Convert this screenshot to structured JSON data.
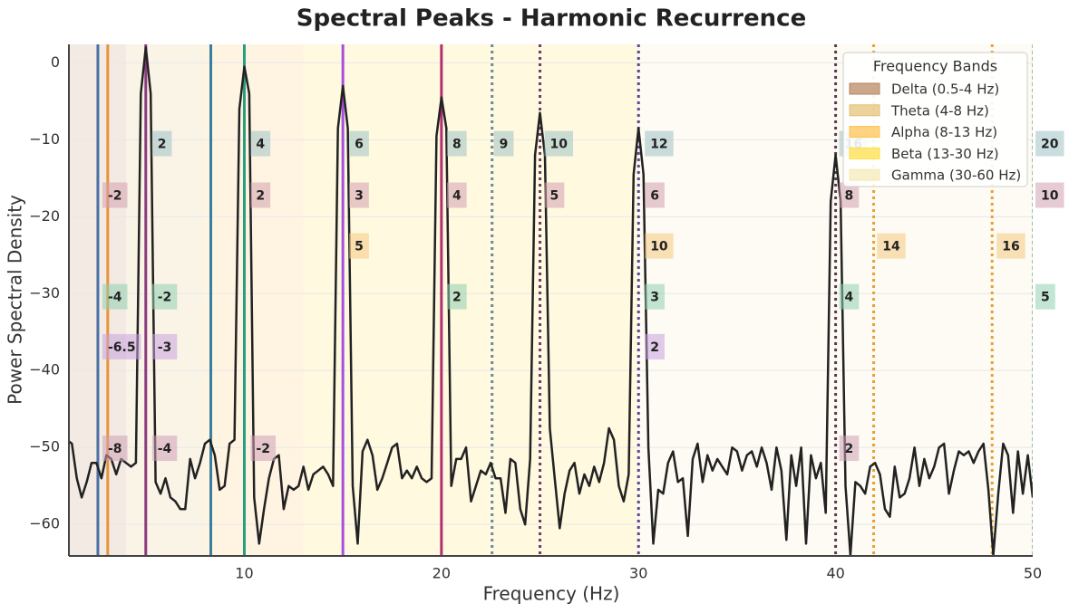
{
  "chart_data": {
    "type": "line",
    "title": "Spectral Peaks - Harmonic Recurrence",
    "xlabel": "Frequency (Hz)",
    "ylabel": "Power Spectral Density",
    "xlim": [
      1.1,
      50
    ],
    "ylim": [
      -64.1,
      2.4
    ],
    "xticks": [
      10,
      20,
      30,
      40,
      50
    ],
    "yticks": [
      0,
      {
        "value": -10,
        "label": "−10"
      },
      {
        "value": -20,
        "label": "−20"
      },
      {
        "value": -30,
        "label": "−30"
      },
      {
        "value": -40,
        "label": "−40"
      },
      {
        "value": -50,
        "label": "−50"
      },
      {
        "value": -60,
        "label": "−60"
      }
    ],
    "grid": true,
    "color": "#222222",
    "x": [
      1,
      1.25,
      1.5,
      1.75,
      2,
      2.25,
      2.5,
      2.75,
      3,
      3.25,
      3.5,
      3.75,
      4,
      4.25,
      4.5,
      4.75,
      5,
      5.25,
      5.5,
      5.75,
      6,
      6.25,
      6.5,
      6.75,
      7,
      7.25,
      7.5,
      7.75,
      8,
      8.25,
      8.5,
      8.75,
      9,
      9.25,
      9.5,
      9.75,
      10,
      10.25,
      10.5,
      10.75,
      11,
      11.25,
      11.5,
      11.75,
      12,
      12.25,
      12.5,
      12.75,
      13,
      13.25,
      13.5,
      13.75,
      14,
      14.25,
      14.5,
      14.75,
      15,
      15.25,
      15.5,
      15.75,
      16,
      16.25,
      16.5,
      16.75,
      17,
      17.25,
      17.5,
      17.75,
      18,
      18.25,
      18.5,
      18.75,
      19,
      19.25,
      19.5,
      19.75,
      20,
      20.25,
      20.5,
      20.75,
      21,
      21.25,
      21.5,
      21.75,
      22,
      22.25,
      22.5,
      22.75,
      23,
      23.25,
      23.5,
      23.75,
      24,
      24.25,
      24.5,
      24.75,
      25,
      25.25,
      25.5,
      25.75,
      26,
      26.25,
      26.5,
      26.75,
      27,
      27.25,
      27.5,
      27.75,
      28,
      28.25,
      28.5,
      28.75,
      29,
      29.25,
      29.5,
      29.75,
      30,
      30.25,
      30.5,
      30.75,
      31,
      31.25,
      31.5,
      31.75,
      32,
      32.25,
      32.5,
      32.75,
      33,
      33.25,
      33.5,
      33.75,
      34,
      34.25,
      34.5,
      34.75,
      35,
      35.25,
      35.5,
      35.75,
      36,
      36.25,
      36.5,
      36.75,
      37,
      37.25,
      37.5,
      37.75,
      38,
      38.25,
      38.5,
      38.75,
      39,
      39.25,
      39.5,
      39.75,
      40,
      40.25,
      40.5,
      40.75,
      41,
      41.25,
      41.5,
      41.75,
      42,
      42.25,
      42.5,
      42.75,
      43,
      43.25,
      43.5,
      43.75,
      44,
      44.25,
      44.5,
      44.75,
      45,
      45.25,
      45.5,
      45.75,
      46,
      46.25,
      46.5,
      46.75,
      47,
      47.25,
      47.5,
      47.75,
      48,
      48.25,
      48.5,
      48.75,
      49,
      49.25,
      49.5,
      49.75,
      50
    ],
    "values": [
      -49,
      -49.5,
      -54,
      -56.5,
      -54.5,
      -52,
      -52,
      -54,
      -51,
      -51.5,
      -53.5,
      -51.5,
      -52,
      -52.5,
      -52,
      -4,
      2,
      -4,
      -54.5,
      -56,
      -54,
      -56.5,
      -57,
      -58,
      -58,
      -51.5,
      -54,
      -52,
      -49.5,
      -49,
      -51,
      -55.5,
      -55,
      -49.5,
      -49,
      -6,
      -0.5,
      -4,
      -56.5,
      -62.5,
      -58,
      -54,
      -51.5,
      -51,
      -58,
      -55,
      -55.5,
      -55,
      -52.5,
      -55.5,
      -53.5,
      -53,
      -52.5,
      -53.5,
      -55,
      -8.5,
      -3,
      -8.5,
      -55,
      -62.5,
      -50.5,
      -49,
      -51,
      -55.5,
      -54,
      -52,
      -50,
      -49.5,
      -54,
      -53,
      -54,
      -52.5,
      -54,
      -54.5,
      -54,
      -9.5,
      -4.5,
      -8.5,
      -55,
      -51.5,
      -51.5,
      -50,
      -57,
      -55,
      -53,
      -53.5,
      -52,
      -54,
      -54,
      -58.5,
      -51.5,
      -52,
      -58,
      -60,
      -51.5,
      -12,
      -6.5,
      -12,
      -47.5,
      -54,
      -60.5,
      -56,
      -53,
      -52,
      -56,
      -53.5,
      -55,
      -52.5,
      -54.5,
      -52,
      -47.5,
      -49,
      -55,
      -57,
      -53.5,
      -14.5,
      -8.5,
      -14.5,
      -50,
      -62.5,
      -55.5,
      -56,
      -52,
      -50.5,
      -54.5,
      -54,
      -61.5,
      -51.5,
      -49.5,
      -54.5,
      -51,
      -53,
      -51.5,
      -52.5,
      -53.5,
      -50,
      -50.5,
      -53,
      -51,
      -50.5,
      -52.5,
      -50,
      -52,
      -55.5,
      -50,
      -53,
      -62,
      -51,
      -55,
      -50,
      -62.5,
      -51,
      -54,
      -52,
      -58.5,
      -18,
      -12,
      -18,
      -55,
      -64,
      -54.5,
      -55,
      -56,
      -52.5,
      -52,
      -53.5,
      -58,
      -59,
      -52.5,
      -56.5,
      -56,
      -54,
      -50,
      -55,
      -51.5,
      -54,
      -52.5,
      -50,
      -49.5,
      -56,
      -53,
      -50.5,
      -51,
      -50.5,
      -52,
      -50.5,
      -49.5,
      -55.5,
      -64,
      -56,
      -49.5,
      -51,
      -58.5,
      -50.5,
      -56,
      -51,
      -56.5
    ],
    "bands": [
      {
        "name": "Delta (0.5-4 Hz)",
        "range": [
          0.5,
          4
        ],
        "color": "#b5835a"
      },
      {
        "name": "Theta (4-8 Hz)",
        "range": [
          4,
          8
        ],
        "color": "#e2c070"
      },
      {
        "name": "Alpha (8-13 Hz)",
        "range": [
          8,
          13
        ],
        "color": "#ffc04d"
      },
      {
        "name": "Beta (13-30 Hz)",
        "range": [
          13,
          30
        ],
        "color": "#ffde40"
      },
      {
        "name": "Gamma (30-60 Hz)",
        "range": [
          30,
          60
        ],
        "color": "#f3e9b5"
      }
    ],
    "legend_title": "Frequency Bands",
    "legend": "upper right",
    "markers": [
      {
        "x": 2.57,
        "color": "#4a6fa5",
        "style": "solid"
      },
      {
        "x": 3.07,
        "color": "#e8943a",
        "style": "solid"
      },
      {
        "x": 5,
        "color": "#8b3a7e",
        "style": "solid"
      },
      {
        "x": 8.3,
        "color": "#3a7fa0",
        "style": "solid"
      },
      {
        "x": 10,
        "color": "#2a9d7f",
        "style": "solid"
      },
      {
        "x": 15,
        "color": "#a64ee0",
        "style": "solid"
      },
      {
        "x": 20,
        "color": "#b03070",
        "style": "solid"
      },
      {
        "x": 22.57,
        "color": "#6a8a9a",
        "style": "dotted"
      },
      {
        "x": 25,
        "color": "#6a3d6a",
        "style": "dotted"
      },
      {
        "x": 30,
        "color": "#5a4a8e",
        "style": "dotted"
      },
      {
        "x": 40,
        "color": "#5a3a4a",
        "style": "dotted"
      },
      {
        "x": 41.93,
        "color": "#e8a030",
        "style": "dotted"
      },
      {
        "x": 47.94,
        "color": "#e8a030",
        "style": "dotted"
      },
      {
        "x": 50,
        "color": "#3a8a4a",
        "style": "dashed"
      }
    ],
    "annotation_rows": [
      {
        "y": -10.5,
        "color": "#9fc3c7",
        "items": [
          {
            "x": 5.32,
            "label": "2"
          },
          {
            "x": 10.32,
            "label": "4"
          },
          {
            "x": 15.32,
            "label": "6"
          },
          {
            "x": 20.28,
            "label": "8"
          },
          {
            "x": 22.66,
            "label": "9"
          },
          {
            "x": 25.23,
            "label": "10"
          },
          {
            "x": 30.32,
            "label": "12"
          },
          {
            "x": 40.18,
            "label": "16"
          },
          {
            "x": 50.14,
            "label": "20"
          }
        ]
      },
      {
        "y": -17.2,
        "color": "#d4a0b0",
        "items": [
          {
            "x": 2.8,
            "label": "-2"
          },
          {
            "x": 10.32,
            "label": "2"
          },
          {
            "x": 15.32,
            "label": "3"
          },
          {
            "x": 20.28,
            "label": "4"
          },
          {
            "x": 25.23,
            "label": "5"
          },
          {
            "x": 30.32,
            "label": "6"
          },
          {
            "x": 40.18,
            "label": "8"
          },
          {
            "x": 50.14,
            "label": "10"
          }
        ]
      },
      {
        "y": -23.8,
        "color": "#f5c880",
        "items": [
          {
            "x": 15.32,
            "label": "5"
          },
          {
            "x": 30.32,
            "label": "10"
          },
          {
            "x": 42.1,
            "label": "14"
          },
          {
            "x": 48.17,
            "label": "16"
          }
        ]
      },
      {
        "y": -30.4,
        "color": "#90d0b0",
        "items": [
          {
            "x": 2.8,
            "label": "-4"
          },
          {
            "x": 5.32,
            "label": "-2"
          },
          {
            "x": 20.28,
            "label": "2"
          },
          {
            "x": 30.32,
            "label": "3"
          },
          {
            "x": 40.18,
            "label": "4"
          },
          {
            "x": 50.14,
            "label": "5"
          }
        ]
      },
      {
        "y": -36.9,
        "color": "#c8a0e0",
        "items": [
          {
            "x": 2.8,
            "label": "-6.5"
          },
          {
            "x": 5.32,
            "label": "-3"
          },
          {
            "x": 30.32,
            "label": "2"
          }
        ]
      },
      {
        "y": -50.1,
        "color": "#d0a0b8",
        "items": [
          {
            "x": 2.8,
            "label": "-8"
          },
          {
            "x": 5.32,
            "label": "-4"
          },
          {
            "x": 10.32,
            "label": "-2"
          },
          {
            "x": 40.18,
            "label": "2"
          }
        ]
      }
    ]
  }
}
